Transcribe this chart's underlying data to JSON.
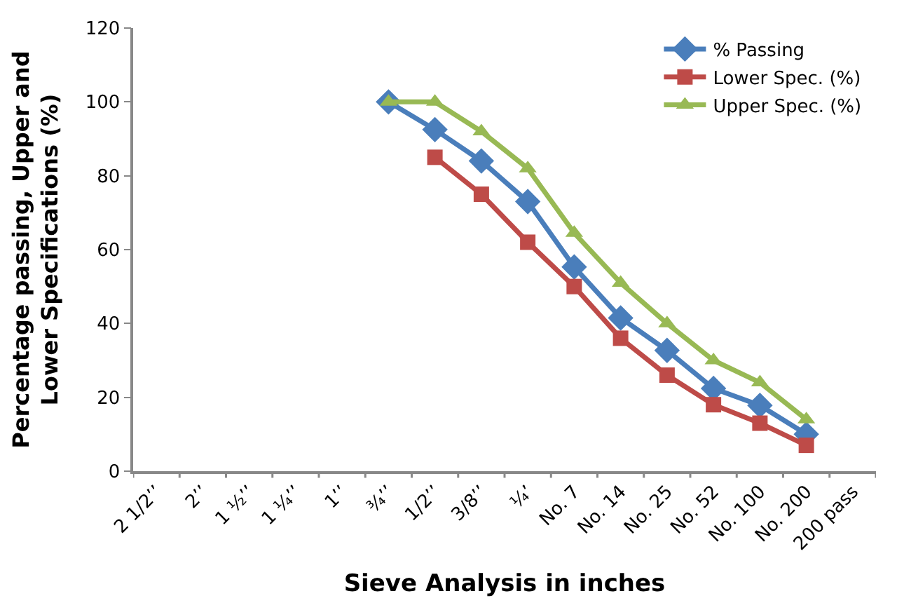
{
  "chart_data": {
    "type": "line",
    "xlabel": "Sieve Analysis in inches",
    "ylabel": "Percentage passing, Upper and Lower Specifications (%)",
    "categories": [
      "2 1/2’’",
      "2’’",
      "1 ½’’",
      "1 ¼’’",
      "1’’",
      "¾’’",
      "1/2’’",
      "3/8’’",
      "¼’",
      "No. 7",
      "No. 14",
      "No. 25",
      "No. 52",
      "No. 100",
      "No. 200",
      "200 pass"
    ],
    "series": [
      {
        "name": "% Passing",
        "color": "#4a7ebb",
        "marker": "diamond",
        "values": [
          null,
          null,
          null,
          null,
          null,
          100,
          92.5,
          84,
          73,
          55.3,
          41.5,
          32.7,
          22.4,
          17.8,
          10,
          null
        ]
      },
      {
        "name": "Lower Spec. (%)",
        "color": "#be4b48",
        "marker": "square",
        "values": [
          null,
          null,
          null,
          null,
          null,
          null,
          85,
          75,
          62,
          50,
          36,
          26,
          18,
          13,
          7,
          null
        ]
      },
      {
        "name": "Upper Spec. (%)",
        "color": "#98b954",
        "marker": "triangle",
        "values": [
          null,
          null,
          null,
          null,
          null,
          100,
          100,
          92,
          82,
          64.5,
          51,
          40,
          30,
          24,
          14,
          null
        ]
      }
    ],
    "ylim": [
      0,
      120
    ],
    "yticks": [
      0,
      20,
      40,
      60,
      80,
      100,
      120
    ],
    "legend": "top right",
    "line_style": "solid"
  }
}
